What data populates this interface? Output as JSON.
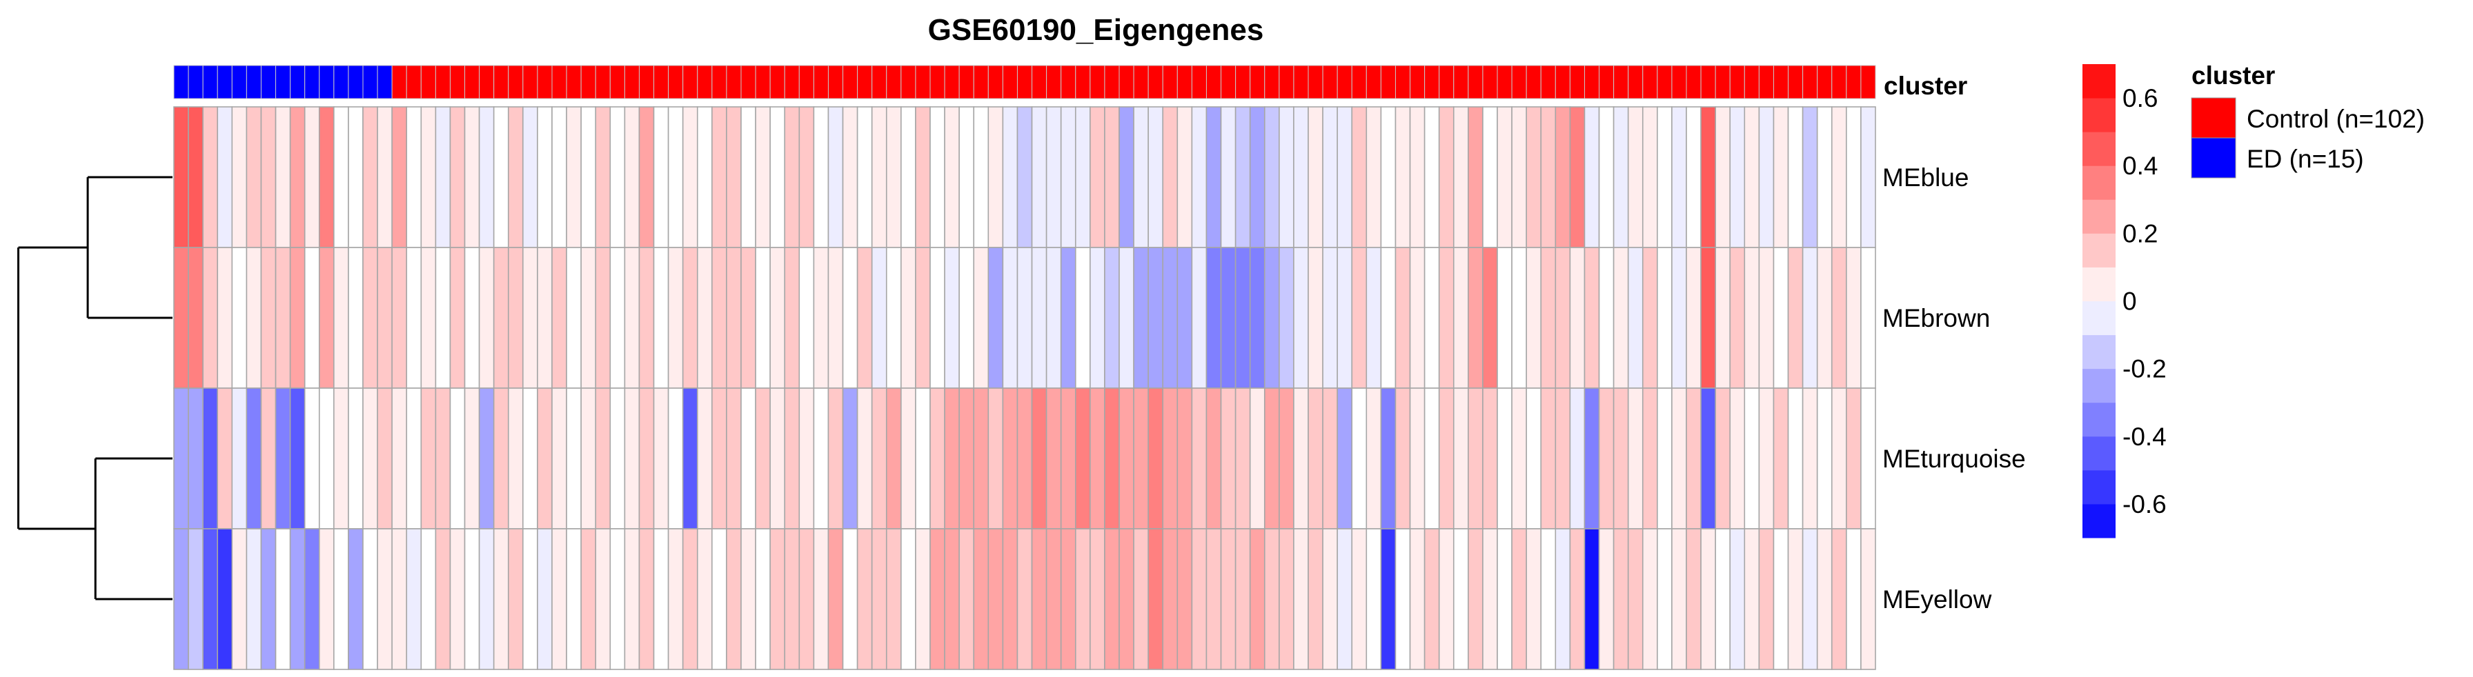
{
  "chart_data": {
    "type": "heatmap",
    "title": "GSE60190_Eigengenes",
    "rows": [
      "MEblue",
      "MEbrown",
      "MEturquoise",
      "MEyellow"
    ],
    "n_columns": 117,
    "color_scale": {
      "low": "#0000FF",
      "mid": "#FFFFFF",
      "high": "#FF0000",
      "range": [
        -0.7,
        0.7
      ],
      "ticks": [
        0.6,
        0.4,
        0.2,
        0,
        -0.2,
        -0.4,
        -0.6
      ],
      "tick_labels": [
        "0.6",
        "0.4",
        "0.2",
        "0",
        "-0.2",
        "-0.4",
        "-0.6"
      ],
      "bins": 14
    },
    "annotation": {
      "name": "cluster",
      "groups": [
        {
          "label": "Control (n=102)",
          "color": "#FF0000",
          "count": 102
        },
        {
          "label": "ED (n=15)",
          "color": "#0000FF",
          "count": 15
        }
      ],
      "column_groups": [
        "ED",
        "ED",
        "ED",
        "ED",
        "ED",
        "ED",
        "ED",
        "ED",
        "ED",
        "ED",
        "ED",
        "ED",
        "ED",
        "ED",
        "ED",
        "Control",
        "Control",
        "Control",
        "Control",
        "Control",
        "Control",
        "Control",
        "Control",
        "Control",
        "Control",
        "Control",
        "Control",
        "Control",
        "Control",
        "Control",
        "Control",
        "Control",
        "Control",
        "Control",
        "Control",
        "Control",
        "Control",
        "Control",
        "Control",
        "Control",
        "Control",
        "Control",
        "Control",
        "Control",
        "Control",
        "Control",
        "Control",
        "Control",
        "Control",
        "Control",
        "Control",
        "Control",
        "Control",
        "Control",
        "Control",
        "Control",
        "Control",
        "Control",
        "Control",
        "Control",
        "Control",
        "Control",
        "Control",
        "Control",
        "Control",
        "Control",
        "Control",
        "Control",
        "Control",
        "Control",
        "Control",
        "Control",
        "Control",
        "Control",
        "Control",
        "Control",
        "Control",
        "Control",
        "Control",
        "Control",
        "Control",
        "Control",
        "Control",
        "Control",
        "Control",
        "Control",
        "Control",
        "Control",
        "Control",
        "Control",
        "Control",
        "Control",
        "Control",
        "Control",
        "Control",
        "Control",
        "Control",
        "Control",
        "Control",
        "Control",
        "Control",
        "Control",
        "Control",
        "Control",
        "Control",
        "Control",
        "Control",
        "Control",
        "Control",
        "Control",
        "Control",
        "Control",
        "Control",
        "Control",
        "Control",
        "Control",
        "Control"
      ]
    },
    "row_dendrogram": {
      "merges": [
        [
          "MEblue",
          "MEbrown"
        ],
        [
          "MEturquoise",
          "MEyellow"
        ],
        [
          "left",
          "right"
        ]
      ],
      "heights": [
        0.55,
        0.5,
        1.0
      ]
    },
    "values": {
      "MEblue": [
        0.45,
        0.45,
        0.1,
        -0.05,
        0.05,
        0.1,
        0.15,
        0.05,
        0.25,
        0.05,
        0.3,
        0.0,
        0.0,
        0.15,
        0.05,
        0.2,
        0.0,
        0.05,
        -0.05,
        0.1,
        0.05,
        -0.05,
        0.0,
        0.15,
        -0.05,
        0.0,
        0.0,
        0.05,
        0.0,
        0.1,
        0.0,
        0.05,
        0.2,
        0.0,
        0.0,
        0.05,
        0.0,
        0.15,
        0.1,
        0.0,
        0.05,
        0.0,
        0.1,
        0.15,
        0.0,
        -0.05,
        0.05,
        0.0,
        0.05,
        0.05,
        0.0,
        0.15,
        0.0,
        0.05,
        0.0,
        0.0,
        0.05,
        -0.05,
        -0.2,
        -0.05,
        -0.05,
        -0.1,
        -0.05,
        0.1,
        0.1,
        -0.25,
        -0.05,
        -0.05,
        0.15,
        0.05,
        -0.1,
        -0.3,
        -0.1,
        -0.2,
        -0.25,
        -0.15,
        -0.05,
        -0.05,
        0.05,
        -0.05,
        -0.05,
        0.1,
        0.05,
        0.0,
        0.05,
        0.05,
        0.0,
        0.1,
        0.05,
        0.25,
        0.0,
        0.05,
        0.05,
        0.15,
        0.1,
        0.25,
        0.35,
        -0.1,
        0.0,
        -0.05,
        0.05,
        0.05,
        0.0,
        -0.05,
        0.0,
        0.4,
        0.05,
        -0.05,
        0.05,
        -0.05,
        0.05,
        0.0,
        -0.15,
        0.0,
        0.05,
        0.0,
        -0.05
      ],
      "MEbrown": [
        0.35,
        0.35,
        0.1,
        0.05,
        0.0,
        0.05,
        0.1,
        0.1,
        0.2,
        0.0,
        0.2,
        0.05,
        0.0,
        0.1,
        0.1,
        0.15,
        0.0,
        0.05,
        0.0,
        0.1,
        0.0,
        0.05,
        0.1,
        0.15,
        0.05,
        0.05,
        0.1,
        0.0,
        0.05,
        0.1,
        0.0,
        0.05,
        0.15,
        0.0,
        0.05,
        0.15,
        0.05,
        0.1,
        0.15,
        0.1,
        0.0,
        0.05,
        0.1,
        0.0,
        0.05,
        0.05,
        0.0,
        0.1,
        -0.05,
        0.0,
        0.05,
        0.1,
        0.0,
        -0.05,
        0.0,
        0.05,
        -0.25,
        -0.1,
        -0.05,
        -0.05,
        -0.1,
        -0.3,
        0.0,
        -0.05,
        -0.2,
        -0.1,
        -0.25,
        -0.3,
        -0.3,
        -0.3,
        -0.1,
        -0.35,
        -0.35,
        -0.35,
        -0.35,
        -0.3,
        -0.2,
        -0.05,
        0.05,
        -0.1,
        -0.05,
        0.1,
        -0.05,
        0.0,
        0.1,
        0.05,
        0.0,
        0.1,
        0.05,
        0.25,
        0.3,
        0.0,
        0.0,
        0.05,
        0.1,
        0.15,
        0.05,
        0.1,
        0.0,
        0.05,
        -0.05,
        0.1,
        0.0,
        -0.05,
        0.05,
        0.4,
        0.05,
        0.1,
        0.05,
        0.05,
        0.0,
        0.1,
        -0.05,
        0.05,
        0.1,
        0.05,
        0.0
      ],
      "MEturquoise": [
        -0.3,
        -0.3,
        -0.4,
        0.1,
        -0.05,
        -0.35,
        0.1,
        -0.35,
        -0.4,
        0.0,
        0.0,
        0.05,
        0.0,
        0.05,
        0.1,
        0.05,
        0.0,
        0.1,
        0.1,
        0.0,
        0.05,
        -0.25,
        0.1,
        0.05,
        0.0,
        0.1,
        0.05,
        0.0,
        0.05,
        0.1,
        0.0,
        0.05,
        0.1,
        0.05,
        0.0,
        -0.4,
        0.05,
        0.1,
        0.15,
        0.0,
        0.1,
        0.05,
        0.15,
        0.05,
        0.0,
        0.15,
        -0.25,
        0.05,
        0.1,
        0.2,
        0.05,
        0.0,
        0.15,
        0.2,
        0.25,
        0.2,
        0.15,
        0.25,
        0.25,
        0.3,
        0.25,
        0.2,
        0.3,
        0.25,
        0.3,
        0.2,
        0.25,
        0.3,
        0.2,
        0.25,
        0.1,
        0.2,
        0.1,
        0.15,
        0.05,
        0.2,
        0.25,
        0.05,
        0.1,
        0.15,
        -0.3,
        0.0,
        0.05,
        -0.35,
        0.1,
        0.05,
        0.0,
        0.1,
        0.05,
        0.15,
        0.15,
        0.0,
        0.05,
        0.0,
        0.1,
        0.1,
        -0.05,
        -0.35,
        0.1,
        0.15,
        0.05,
        0.1,
        0.0,
        0.05,
        0.1,
        -0.4,
        0.1,
        0.05,
        0.0,
        0.05,
        0.1,
        0.0,
        0.05,
        0.0,
        0.05,
        0.1,
        0.0
      ],
      "MEyellow": [
        -0.3,
        -0.2,
        -0.4,
        -0.5,
        0.05,
        -0.05,
        -0.25,
        0.0,
        -0.3,
        -0.35,
        0.05,
        0.0,
        -0.3,
        0.0,
        0.05,
        0.05,
        -0.05,
        0.0,
        0.1,
        0.05,
        0.0,
        -0.05,
        0.05,
        0.1,
        0.0,
        -0.1,
        0.05,
        0.0,
        0.1,
        0.05,
        0.0,
        0.05,
        0.1,
        0.0,
        0.05,
        0.1,
        0.05,
        0.0,
        0.1,
        0.05,
        0.0,
        0.1,
        0.15,
        0.1,
        0.05,
        0.2,
        0.0,
        0.1,
        0.15,
        0.1,
        0.0,
        0.05,
        0.25,
        0.2,
        0.15,
        0.2,
        0.25,
        0.2,
        0.15,
        0.2,
        0.25,
        0.2,
        0.15,
        0.1,
        0.25,
        0.2,
        0.15,
        0.3,
        0.25,
        0.2,
        0.15,
        0.1,
        0.1,
        0.15,
        0.2,
        0.1,
        0.1,
        0.05,
        0.1,
        0.05,
        -0.05,
        0.05,
        0.0,
        -0.55,
        0.0,
        0.05,
        0.1,
        0.05,
        0.0,
        0.1,
        0.05,
        0.0,
        0.1,
        0.05,
        0.0,
        -0.05,
        0.1,
        -0.65,
        0.05,
        0.1,
        0.1,
        0.05,
        0.0,
        0.05,
        0.1,
        0.05,
        0.0,
        -0.05,
        0.05,
        0.1,
        0.0,
        0.05,
        -0.1,
        0.05,
        0.1,
        0.0,
        0.05
      ]
    }
  }
}
